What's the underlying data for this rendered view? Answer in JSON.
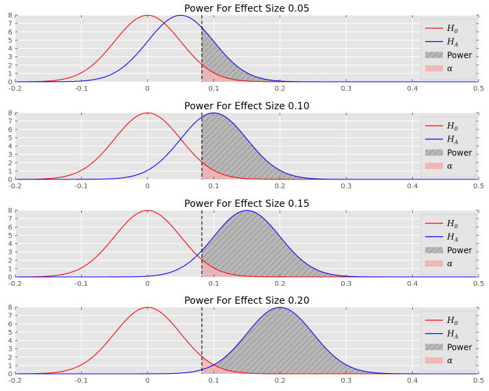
{
  "chart_data": [
    {
      "type": "area",
      "title": "Power For Effect Size 0.05",
      "effect_size": 0.05,
      "xlim": [
        -0.2,
        0.5
      ],
      "ylim": [
        0,
        8
      ],
      "xticks": [
        "-0.2",
        "-0.1",
        "0",
        "0.1",
        "0.2",
        "0.3",
        "0.4",
        "0.5"
      ],
      "yticks": [
        "0",
        "1",
        "2",
        "3",
        "4",
        "5",
        "6",
        "7",
        "8"
      ],
      "series": [
        {
          "name": "H",
          "subscript": "0",
          "mean": 0.0,
          "sd": 0.05,
          "color": "#ff0000"
        },
        {
          "name": "H",
          "subscript": "A",
          "mean": 0.05,
          "sd": 0.05,
          "color": "#0000ff"
        }
      ],
      "critical_value": 0.082,
      "legend": [
        {
          "kind": "line",
          "math": "H",
          "sub": "0",
          "color": "#ff0000"
        },
        {
          "kind": "line",
          "math": "H",
          "sub": "A",
          "color": "#0000ff"
        },
        {
          "kind": "hatch",
          "label": "Power"
        },
        {
          "kind": "fill",
          "math": "α",
          "color": "#f1b6b6"
        }
      ]
    },
    {
      "type": "area",
      "title": "Power For Effect Size 0.10",
      "effect_size": 0.1,
      "xlim": [
        -0.2,
        0.5
      ],
      "ylim": [
        0,
        8
      ],
      "xticks": [
        "-0.2",
        "-0.1",
        "0",
        "0.1",
        "0.2",
        "0.3",
        "0.4",
        "0.5"
      ],
      "yticks": [
        "0",
        "1",
        "2",
        "3",
        "4",
        "5",
        "6",
        "7",
        "8"
      ],
      "series": [
        {
          "name": "H",
          "subscript": "0",
          "mean": 0.0,
          "sd": 0.05,
          "color": "#ff0000"
        },
        {
          "name": "H",
          "subscript": "A",
          "mean": 0.1,
          "sd": 0.05,
          "color": "#0000ff"
        }
      ],
      "critical_value": 0.082,
      "legend": [
        {
          "kind": "line",
          "math": "H",
          "sub": "0",
          "color": "#ff0000"
        },
        {
          "kind": "line",
          "math": "H",
          "sub": "A",
          "color": "#0000ff"
        },
        {
          "kind": "hatch",
          "label": "Power"
        },
        {
          "kind": "fill",
          "math": "α",
          "color": "#f1b6b6"
        }
      ]
    },
    {
      "type": "area",
      "title": "Power For Effect Size 0.15",
      "effect_size": 0.15,
      "xlim": [
        -0.2,
        0.5
      ],
      "ylim": [
        0,
        8
      ],
      "xticks": [
        "-0.2",
        "-0.1",
        "0",
        "0.1",
        "0.2",
        "0.3",
        "0.4",
        "0.5"
      ],
      "yticks": [
        "0",
        "1",
        "2",
        "3",
        "4",
        "5",
        "6",
        "7",
        "8"
      ],
      "series": [
        {
          "name": "H",
          "subscript": "0",
          "mean": 0.0,
          "sd": 0.05,
          "color": "#ff0000"
        },
        {
          "name": "H",
          "subscript": "A",
          "mean": 0.15,
          "sd": 0.05,
          "color": "#0000ff"
        }
      ],
      "critical_value": 0.082,
      "legend": [
        {
          "kind": "line",
          "math": "H",
          "sub": "0",
          "color": "#ff0000"
        },
        {
          "kind": "line",
          "math": "H",
          "sub": "A",
          "color": "#0000ff"
        },
        {
          "kind": "hatch",
          "label": "Power"
        },
        {
          "kind": "fill",
          "math": "α",
          "color": "#f1b6b6"
        }
      ]
    },
    {
      "type": "area",
      "title": "Power For Effect Size 0.20",
      "effect_size": 0.2,
      "xlim": [
        -0.2,
        0.5
      ],
      "ylim": [
        0,
        8
      ],
      "xticks": [
        "-0.2",
        "-0.1",
        "0",
        "0.1",
        "0.2",
        "0.3",
        "0.4",
        "0.5"
      ],
      "yticks": [
        "0",
        "1",
        "2",
        "3",
        "4",
        "5",
        "6",
        "7",
        "8"
      ],
      "series": [
        {
          "name": "H",
          "subscript": "0",
          "mean": 0.0,
          "sd": 0.05,
          "color": "#ff0000"
        },
        {
          "name": "H",
          "subscript": "A",
          "mean": 0.2,
          "sd": 0.05,
          "color": "#0000ff"
        }
      ],
      "critical_value": 0.082,
      "legend": [
        {
          "kind": "line",
          "math": "H",
          "sub": "0",
          "color": "#ff0000"
        },
        {
          "kind": "line",
          "math": "H",
          "sub": "A",
          "color": "#0000ff"
        },
        {
          "kind": "hatch",
          "label": "Power"
        },
        {
          "kind": "fill",
          "math": "α",
          "color": "#f1b6b6"
        }
      ]
    }
  ],
  "colors": {
    "plot_background": "#e5e5e5",
    "grid": "#ffffff",
    "null_curve": "#ff0000",
    "alt_curve": "#0000ff",
    "alpha_fill": "#f1b6b6",
    "power_fill": "#b7b7b7",
    "hatch": "#8c8c8c",
    "critical_line": "#000000"
  }
}
